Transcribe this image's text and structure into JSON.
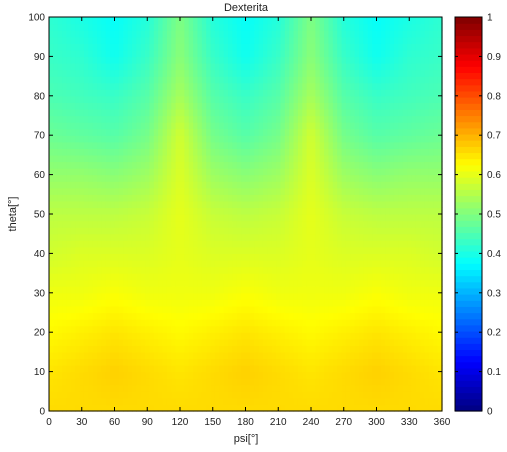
{
  "chart_data": {
    "type": "heatmap",
    "title": "Dexterita",
    "xlabel": "psi[°]",
    "ylabel": "theta[°]",
    "xlim": [
      0,
      360
    ],
    "ylim": [
      0,
      100
    ],
    "x_ticks": [
      0,
      30,
      60,
      90,
      120,
      150,
      180,
      210,
      240,
      270,
      300,
      330,
      360
    ],
    "y_ticks": [
      0,
      10,
      20,
      30,
      40,
      50,
      60,
      70,
      80,
      90,
      100
    ],
    "psi": [
      0,
      30,
      60,
      90,
      120,
      150,
      180,
      210,
      240,
      270,
      300,
      330,
      360
    ],
    "theta": [
      0,
      10,
      20,
      30,
      40,
      50,
      60,
      70,
      80,
      90,
      100
    ],
    "dexterity": [
      [
        0.66,
        0.66,
        0.66,
        0.66,
        0.66,
        0.66,
        0.66,
        0.66,
        0.66,
        0.66,
        0.66,
        0.66,
        0.66
      ],
      [
        0.65,
        0.66,
        0.67,
        0.66,
        0.65,
        0.66,
        0.67,
        0.66,
        0.65,
        0.66,
        0.67,
        0.66,
        0.65
      ],
      [
        0.63,
        0.64,
        0.65,
        0.64,
        0.63,
        0.64,
        0.65,
        0.64,
        0.63,
        0.64,
        0.65,
        0.64,
        0.63
      ],
      [
        0.61,
        0.61,
        0.62,
        0.61,
        0.61,
        0.61,
        0.62,
        0.61,
        0.61,
        0.61,
        0.62,
        0.61,
        0.61
      ],
      [
        0.58,
        0.59,
        0.59,
        0.59,
        0.6,
        0.59,
        0.59,
        0.59,
        0.6,
        0.59,
        0.59,
        0.59,
        0.58
      ],
      [
        0.56,
        0.56,
        0.56,
        0.57,
        0.6,
        0.57,
        0.56,
        0.57,
        0.6,
        0.57,
        0.56,
        0.56,
        0.56
      ],
      [
        0.52,
        0.52,
        0.51,
        0.53,
        0.59,
        0.53,
        0.51,
        0.53,
        0.59,
        0.53,
        0.51,
        0.52,
        0.52
      ],
      [
        0.48,
        0.47,
        0.46,
        0.49,
        0.58,
        0.49,
        0.46,
        0.49,
        0.58,
        0.49,
        0.46,
        0.47,
        0.48
      ],
      [
        0.45,
        0.44,
        0.43,
        0.46,
        0.54,
        0.46,
        0.43,
        0.46,
        0.54,
        0.46,
        0.43,
        0.44,
        0.45
      ],
      [
        0.43,
        0.42,
        0.39,
        0.43,
        0.51,
        0.43,
        0.39,
        0.43,
        0.51,
        0.43,
        0.39,
        0.42,
        0.43
      ],
      [
        0.42,
        0.4,
        0.38,
        0.41,
        0.5,
        0.41,
        0.38,
        0.41,
        0.5,
        0.41,
        0.38,
        0.4,
        0.42
      ]
    ],
    "colorbar": {
      "min": 0,
      "max": 1,
      "ticks": [
        0,
        0.1,
        0.2,
        0.3,
        0.4,
        0.5,
        0.6,
        0.7,
        0.8,
        0.9,
        1
      ],
      "colormap": "jet"
    },
    "grid": false
  }
}
